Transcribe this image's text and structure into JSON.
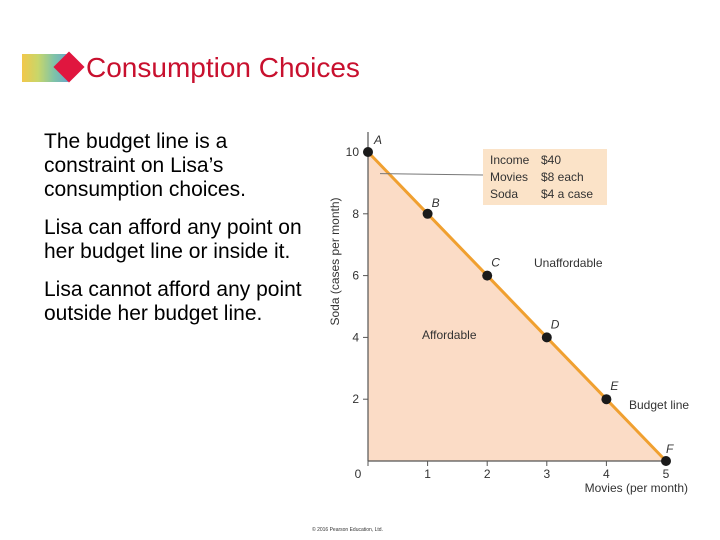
{
  "slide": {
    "title": "Consumption Choices",
    "bullets": [
      "The budget line is a constraint on Lisa’s consumption choices.",
      "Lisa can afford any point on her budget line or inside it.",
      "Lisa cannot afford any point outside her budget line."
    ],
    "copyright": "© 2016 Pearson Education, Ltd."
  },
  "colors": {
    "title": "#c8102e",
    "accent_diamond": "#e0163f",
    "budget_line": "#f0a030",
    "affordable_fill": "#fbdcc6",
    "info_box": "#fbe3c8",
    "points": "#1a1a1a"
  },
  "chart_data": {
    "type": "line",
    "xlabel": "Movies (per month)",
    "ylabel": "Soda (cases per month)",
    "xlim": [
      0,
      5
    ],
    "ylim": [
      0,
      10
    ],
    "x_ticks": [
      0,
      1,
      2,
      3,
      4,
      5
    ],
    "y_ticks": [
      2,
      4,
      6,
      8,
      10
    ],
    "series": [
      {
        "name": "Budget line",
        "points": [
          {
            "label": "A",
            "x": 0,
            "y": 10
          },
          {
            "label": "B",
            "x": 1,
            "y": 8
          },
          {
            "label": "C",
            "x": 2,
            "y": 6
          },
          {
            "label": "D",
            "x": 3,
            "y": 4
          },
          {
            "label": "E",
            "x": 4,
            "y": 2
          },
          {
            "label": "F",
            "x": 5,
            "y": 0
          }
        ]
      }
    ],
    "region_labels": {
      "affordable": "Affordable",
      "unaffordable": "Unaffordable"
    },
    "info_box": [
      {
        "label": "Income",
        "value": "$40"
      },
      {
        "label": "Movies",
        "value": "$8 each"
      },
      {
        "label": "Soda",
        "value": "$4 a case"
      }
    ],
    "grid": false
  }
}
